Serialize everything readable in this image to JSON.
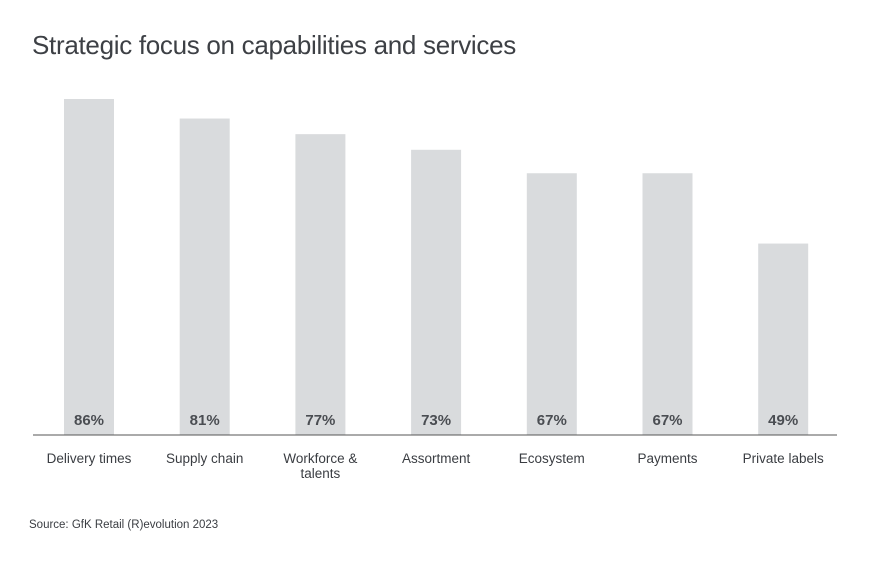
{
  "title": "Strategic focus on capabilities and services",
  "source": "Source: GfK Retail (R)evolution 2023",
  "colors": {
    "bar": "#d9dbdd",
    "axis": "#555555",
    "text": "#3a3d42"
  },
  "chart_data": {
    "type": "bar",
    "title": "Strategic focus on capabilities and services",
    "categories": [
      "Delivery times",
      "Supply chain",
      "Workforce & talents",
      "Assortment",
      "Ecosystem",
      "Payments",
      "Private labels"
    ],
    "category_lines": [
      [
        "Delivery times"
      ],
      [
        "Supply chain"
      ],
      [
        "Workforce &",
        "talents"
      ],
      [
        "Assortment"
      ],
      [
        "Ecosystem"
      ],
      [
        "Payments"
      ],
      [
        "Private labels"
      ]
    ],
    "values": [
      86,
      81,
      77,
      73,
      67,
      67,
      49
    ],
    "data_labels": [
      "86%",
      "81%",
      "77%",
      "73%",
      "67%",
      "67%",
      "49%"
    ],
    "unit": "%",
    "ylim": [
      0,
      86
    ],
    "grid": false,
    "legend": false
  }
}
